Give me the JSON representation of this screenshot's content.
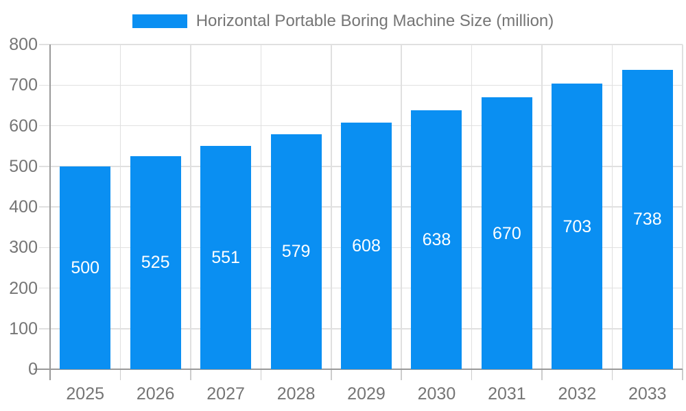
{
  "legend": {
    "label": "Horizontal Portable Boring Machine Size (million)"
  },
  "colors": {
    "bar": "#0a8ff2",
    "axis_line": "#999999",
    "grid_line": "#e0e0e0",
    "tick": "#cccccc",
    "tick_label": "#757575",
    "bar_label": "#ffffff",
    "background": "#ffffff"
  },
  "chart_data": {
    "type": "bar",
    "title": "Horizontal Portable Boring Machine Size (million)",
    "categories": [
      "2025",
      "2026",
      "2027",
      "2028",
      "2029",
      "2030",
      "2031",
      "2032",
      "2033"
    ],
    "values": [
      500,
      525,
      551,
      579,
      608,
      638,
      670,
      703,
      738
    ],
    "xlabel": "",
    "ylabel": "",
    "ylim": [
      0,
      800
    ],
    "ytick_step": 100,
    "ytick_labels": [
      "0",
      "100",
      "200",
      "300",
      "400",
      "500",
      "600",
      "700",
      "800"
    ],
    "grid": true,
    "legend_position": "top",
    "value_label_position": "inside-center"
  }
}
